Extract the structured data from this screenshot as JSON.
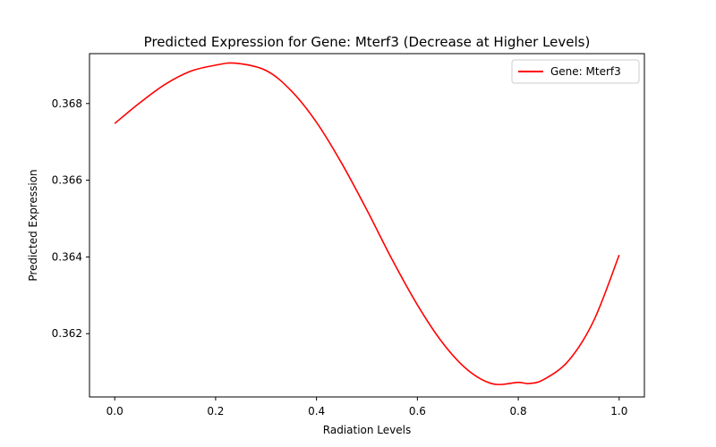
{
  "chart_data": {
    "type": "line",
    "title": "Predicted Expression for Gene: Mterf3 (Decrease at Higher Levels)",
    "xlabel": "Radiation Levels",
    "ylabel": "Predicted Expression",
    "xlim": [
      -0.05,
      1.05
    ],
    "ylim": [
      0.36035,
      0.3693
    ],
    "xticks": [
      0.0,
      0.2,
      0.4,
      0.6,
      0.8,
      1.0
    ],
    "xtick_labels": [
      "0.0",
      "0.2",
      "0.4",
      "0.6",
      "0.8",
      "1.0"
    ],
    "yticks": [
      0.362,
      0.364,
      0.366,
      0.368
    ],
    "ytick_labels": [
      "0.362",
      "0.364",
      "0.366",
      "0.368"
    ],
    "grid": false,
    "legend_position": "top-right",
    "series": [
      {
        "name": "Gene: Mterf3",
        "color": "#ff0000",
        "x": [
          0.0,
          0.05,
          0.1,
          0.15,
          0.2,
          0.24,
          0.3,
          0.35,
          0.4,
          0.45,
          0.5,
          0.55,
          0.6,
          0.65,
          0.7,
          0.75,
          0.8,
          0.82,
          0.85,
          0.9,
          0.95,
          1.0
        ],
        "y": [
          0.36748,
          0.36802,
          0.3685,
          0.36884,
          0.369,
          0.36905,
          0.36886,
          0.36833,
          0.36751,
          0.36644,
          0.36522,
          0.36393,
          0.36275,
          0.36176,
          0.36105,
          0.36069,
          0.36073,
          0.3607,
          0.3608,
          0.3613,
          0.36235,
          0.36405
        ]
      }
    ]
  }
}
